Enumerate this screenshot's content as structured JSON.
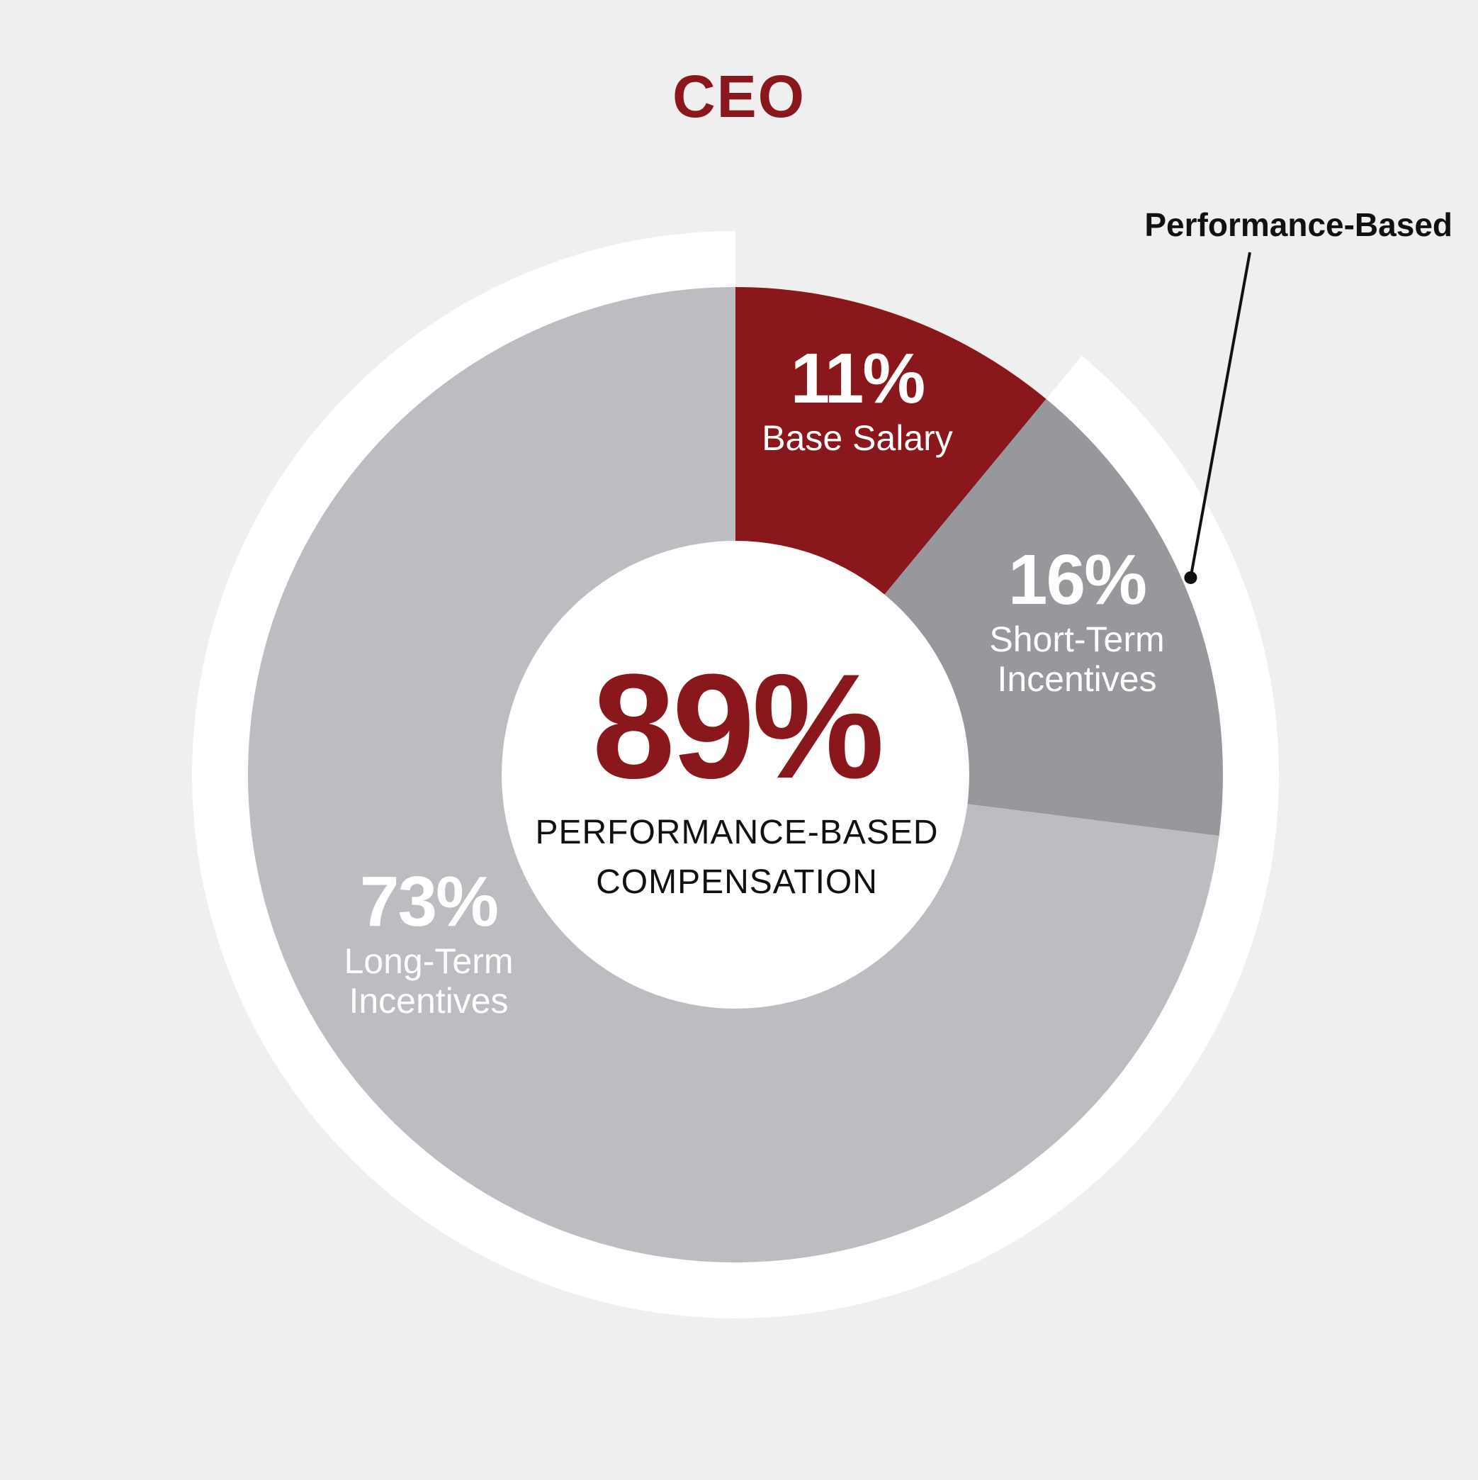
{
  "chart_data": {
    "type": "pie",
    "title": "CEO",
    "center": {
      "value": "89%",
      "caption": "PERFORMANCE-BASED\nCOMPENSATION"
    },
    "callout": {
      "label": "Performance-Based",
      "covers": [
        "Short-Term Incentives",
        "Long-Term Incentives"
      ],
      "total": 89
    },
    "segments": [
      {
        "label": "Base Salary",
        "value": 11,
        "display": "11%",
        "color": "#8a171c"
      },
      {
        "label": "Short-Term Incentives",
        "value": 16,
        "display": "16%",
        "color": "#97989c"
      },
      {
        "label": "Long-Term Incentives",
        "value": 73,
        "display": "73%",
        "color": "#bcbdc1"
      }
    ],
    "legend": "none",
    "grid": false
  },
  "colors": {
    "background": "#efefef",
    "accent": "#8a171c",
    "ring": "#ffffff",
    "callout_line": "#111111"
  }
}
